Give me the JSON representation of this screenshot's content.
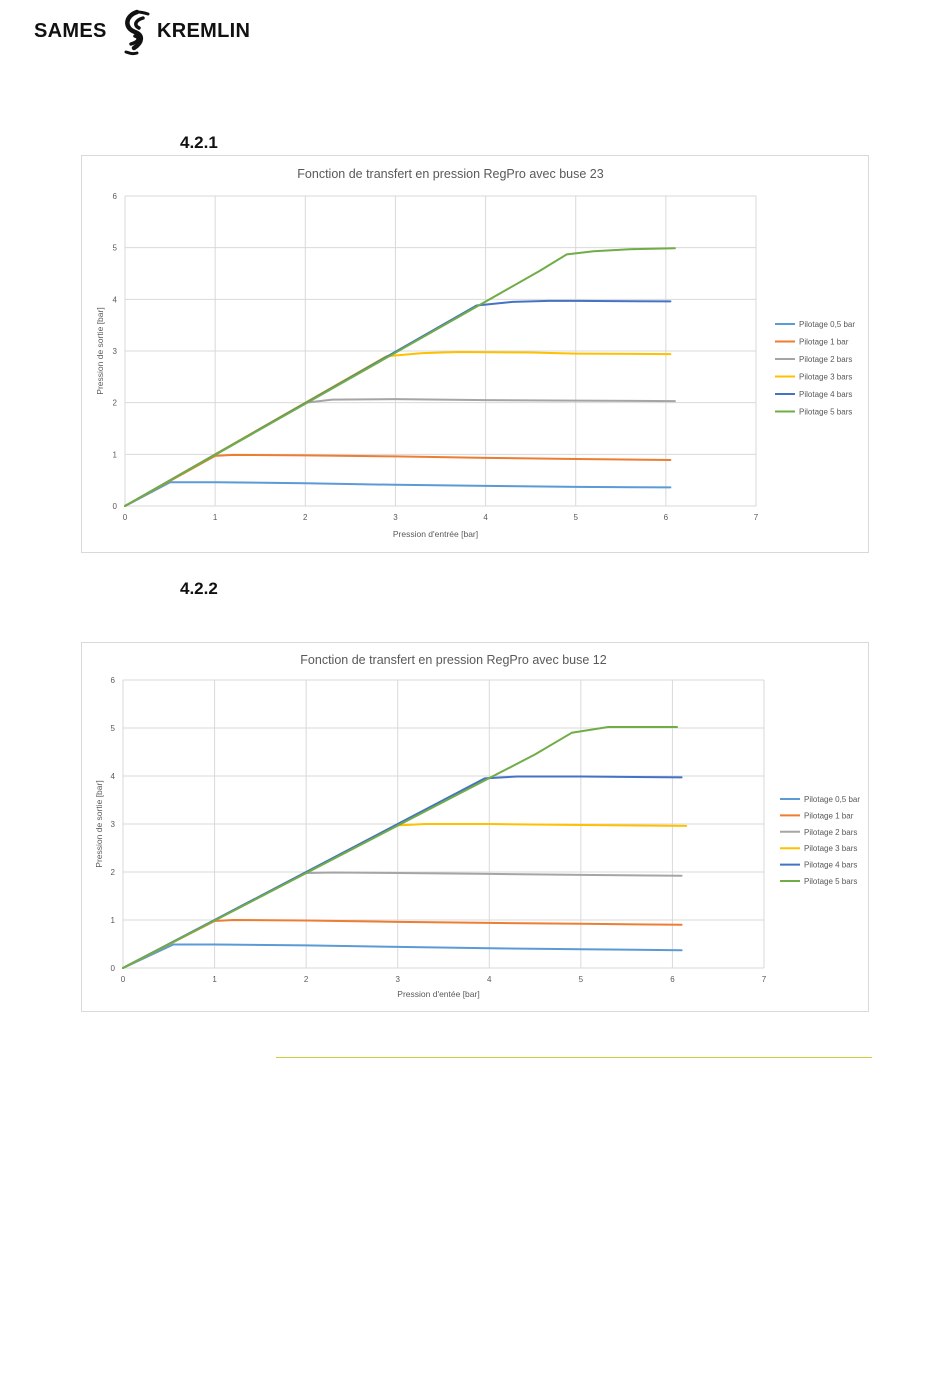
{
  "brand": {
    "left": "SAMES",
    "right": "KREMLIN",
    "mark": "swirl-logo"
  },
  "sections": [
    {
      "number": "4.2.1"
    },
    {
      "number": "4.2.2"
    }
  ],
  "colors": {
    "pilotage_0_5": "#5b9bd5",
    "pilotage_1": "#ed7d31",
    "pilotage_2": "#a5a5a5",
    "pilotage_3": "#ffc000",
    "pilotage_4": "#4472c4",
    "pilotage_5": "#70ad47",
    "grid": "#d9d9d9",
    "footer_rule": "#c9cf3a"
  },
  "chart_data": [
    {
      "type": "line",
      "title": "Fonction de transfert en pression RegPro avec buse 23",
      "xlabel": "Pression d'entrée [bar]",
      "ylabel": "Pression de sortie [bar]",
      "xlim": [
        0,
        7
      ],
      "ylim": [
        0,
        6
      ],
      "xticks": [
        "0",
        "1",
        "2",
        "3",
        "4",
        "5",
        "6",
        "7"
      ],
      "yticks": [
        "0",
        "1",
        "2",
        "3",
        "4",
        "5",
        "6"
      ],
      "grid": "vertical-and-horizontal",
      "legend": "right",
      "series": [
        {
          "name": "Pilotage 0,5 bar",
          "color": "#5b9bd5",
          "x": [
            0,
            0.5,
            1,
            2,
            3,
            4,
            5,
            6.05
          ],
          "y": [
            0,
            0.46,
            0.46,
            0.44,
            0.41,
            0.39,
            0.37,
            0.36
          ]
        },
        {
          "name": "Pilotage 1 bar",
          "color": "#ed7d31",
          "x": [
            0,
            1.0,
            1.2,
            2,
            3,
            4,
            5,
            6.05
          ],
          "y": [
            0,
            0.97,
            0.99,
            0.98,
            0.96,
            0.93,
            0.91,
            0.89
          ]
        },
        {
          "name": "Pilotage 2 bars",
          "color": "#a5a5a5",
          "x": [
            0,
            2.0,
            2.3,
            3,
            4,
            5,
            6.1
          ],
          "y": [
            0,
            2.0,
            2.06,
            2.07,
            2.05,
            2.04,
            2.03
          ]
        },
        {
          "name": "Pilotage 3 bars",
          "color": "#ffc000",
          "x": [
            0,
            2.9,
            3.3,
            3.7,
            4.5,
            5,
            6.05
          ],
          "y": [
            0,
            2.9,
            2.96,
            2.98,
            2.97,
            2.95,
            2.94
          ]
        },
        {
          "name": "Pilotage 4 bars",
          "color": "#4472c4",
          "x": [
            0,
            3.9,
            4.3,
            4.7,
            5,
            6.05
          ],
          "y": [
            0,
            3.88,
            3.95,
            3.97,
            3.97,
            3.96
          ]
        },
        {
          "name": "Pilotage 5 bars",
          "color": "#70ad47",
          "x": [
            0,
            4.6,
            4.9,
            5.2,
            5.6,
            6.1
          ],
          "y": [
            0,
            4.55,
            4.87,
            4.93,
            4.97,
            4.99
          ]
        }
      ]
    },
    {
      "type": "line",
      "title": "Fonction de transfert en pression RegPro avec buse 12",
      "xlabel": "Pression d'entée [bar]",
      "ylabel": "Pression de sortie [bar]",
      "xlim": [
        0,
        7
      ],
      "ylim": [
        0,
        6
      ],
      "xticks": [
        "0",
        "1",
        "2",
        "3",
        "4",
        "5",
        "6",
        "7"
      ],
      "yticks": [
        "0",
        "1",
        "2",
        "3",
        "4",
        "5",
        "6"
      ],
      "grid": "vertical-and-horizontal",
      "legend": "right",
      "series": [
        {
          "name": "Pilotage 0,5 bar",
          "color": "#5b9bd5",
          "x": [
            0,
            0.55,
            1,
            2,
            3,
            4,
            5,
            6.1
          ],
          "y": [
            0,
            0.49,
            0.49,
            0.47,
            0.44,
            0.41,
            0.39,
            0.37
          ]
        },
        {
          "name": "Pilotage 1 bar",
          "color": "#ed7d31",
          "x": [
            0,
            1.0,
            1.2,
            2,
            3,
            4,
            5,
            6.1
          ],
          "y": [
            0,
            0.98,
            1.0,
            0.99,
            0.96,
            0.94,
            0.92,
            0.9
          ]
        },
        {
          "name": "Pilotage 2 bars",
          "color": "#a5a5a5",
          "x": [
            0,
            2.0,
            2.3,
            3,
            4,
            5,
            6.1
          ],
          "y": [
            0,
            1.98,
            1.99,
            1.98,
            1.96,
            1.94,
            1.92
          ]
        },
        {
          "name": "Pilotage 3 bars",
          "color": "#ffc000",
          "x": [
            0,
            3.0,
            3.3,
            4,
            5,
            6.15
          ],
          "y": [
            0,
            2.97,
            3.0,
            3.0,
            2.98,
            2.96
          ]
        },
        {
          "name": "Pilotage 4 bars",
          "color": "#4472c4",
          "x": [
            0,
            3.95,
            4.3,
            5,
            6.1
          ],
          "y": [
            0,
            3.95,
            3.99,
            3.99,
            3.97
          ]
        },
        {
          "name": "Pilotage 5 bars",
          "color": "#70ad47",
          "x": [
            0,
            4.5,
            4.9,
            5.3,
            5.8,
            6.05
          ],
          "y": [
            0,
            4.45,
            4.9,
            5.02,
            5.02,
            5.02
          ]
        }
      ]
    }
  ]
}
